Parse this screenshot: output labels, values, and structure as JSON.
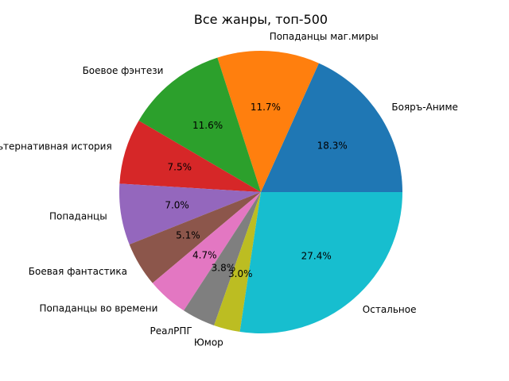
{
  "chart_data": {
    "type": "pie",
    "title": "Все жанры, топ-500",
    "slices": [
      {
        "label": "Бояръ-Аниме",
        "value": 18.3,
        "pct_label": "18.3%",
        "color": "#1f77b4"
      },
      {
        "label": "Попаданцы маг.миры",
        "value": 11.7,
        "pct_label": "11.7%",
        "color": "#ff7f0e"
      },
      {
        "label": "Боевое фэнтези",
        "value": 11.6,
        "pct_label": "11.6%",
        "color": "#2ca02c"
      },
      {
        "label": "Альтернативная история",
        "value": 7.5,
        "pct_label": "7.5%",
        "color": "#d62728"
      },
      {
        "label": "Попаданцы",
        "value": 7.0,
        "pct_label": "7.0%",
        "color": "#9467bd"
      },
      {
        "label": "Боевая фантастика",
        "value": 5.1,
        "pct_label": "5.1%",
        "color": "#8c564b"
      },
      {
        "label": "Попаданцы во времени",
        "value": 4.7,
        "pct_label": "4.7%",
        "color": "#e377c2"
      },
      {
        "label": "РеалРПГ",
        "value": 3.8,
        "pct_label": "3.8%",
        "color": "#7f7f7f"
      },
      {
        "label": "Юмор",
        "value": 3.0,
        "pct_label": "3.0%",
        "color": "#bcbd22"
      },
      {
        "label": "Остальное",
        "value": 27.4,
        "pct_label": "27.4%",
        "color": "#17becf"
      }
    ]
  }
}
